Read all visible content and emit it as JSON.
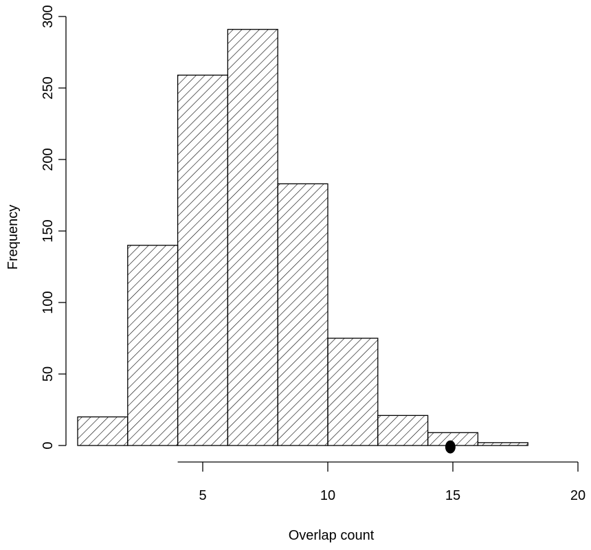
{
  "chart_data": {
    "type": "bar",
    "title": "",
    "xlabel": "Overlap count",
    "ylabel": "Frequency",
    "bins": [
      {
        "start": 0,
        "end": 2,
        "count": 20
      },
      {
        "start": 2,
        "end": 4,
        "count": 140
      },
      {
        "start": 4,
        "end": 6,
        "count": 259
      },
      {
        "start": 6,
        "end": 8,
        "count": 291
      },
      {
        "start": 8,
        "end": 10,
        "count": 183
      },
      {
        "start": 10,
        "end": 12,
        "count": 75
      },
      {
        "start": 12,
        "end": 14,
        "count": 21
      },
      {
        "start": 14,
        "end": 16,
        "count": 9
      },
      {
        "start": 16,
        "end": 18,
        "count": 2
      }
    ],
    "x_axis_range": [
      4,
      20
    ],
    "x_ticks": [
      "5",
      "10",
      "15",
      "20"
    ],
    "x_tick_values": [
      5,
      10,
      15,
      20
    ],
    "y_ticks": [
      "0",
      "50",
      "100",
      "150",
      "200",
      "250",
      "300"
    ],
    "y_tick_values": [
      0,
      50,
      100,
      150,
      200,
      250,
      300
    ],
    "y_axis_range": [
      0,
      300
    ],
    "fill_pattern": "diagonal hatch",
    "marker": {
      "x": 14.9,
      "y": -1,
      "shape": "filled circle"
    },
    "grid": false,
    "legend": "none"
  }
}
